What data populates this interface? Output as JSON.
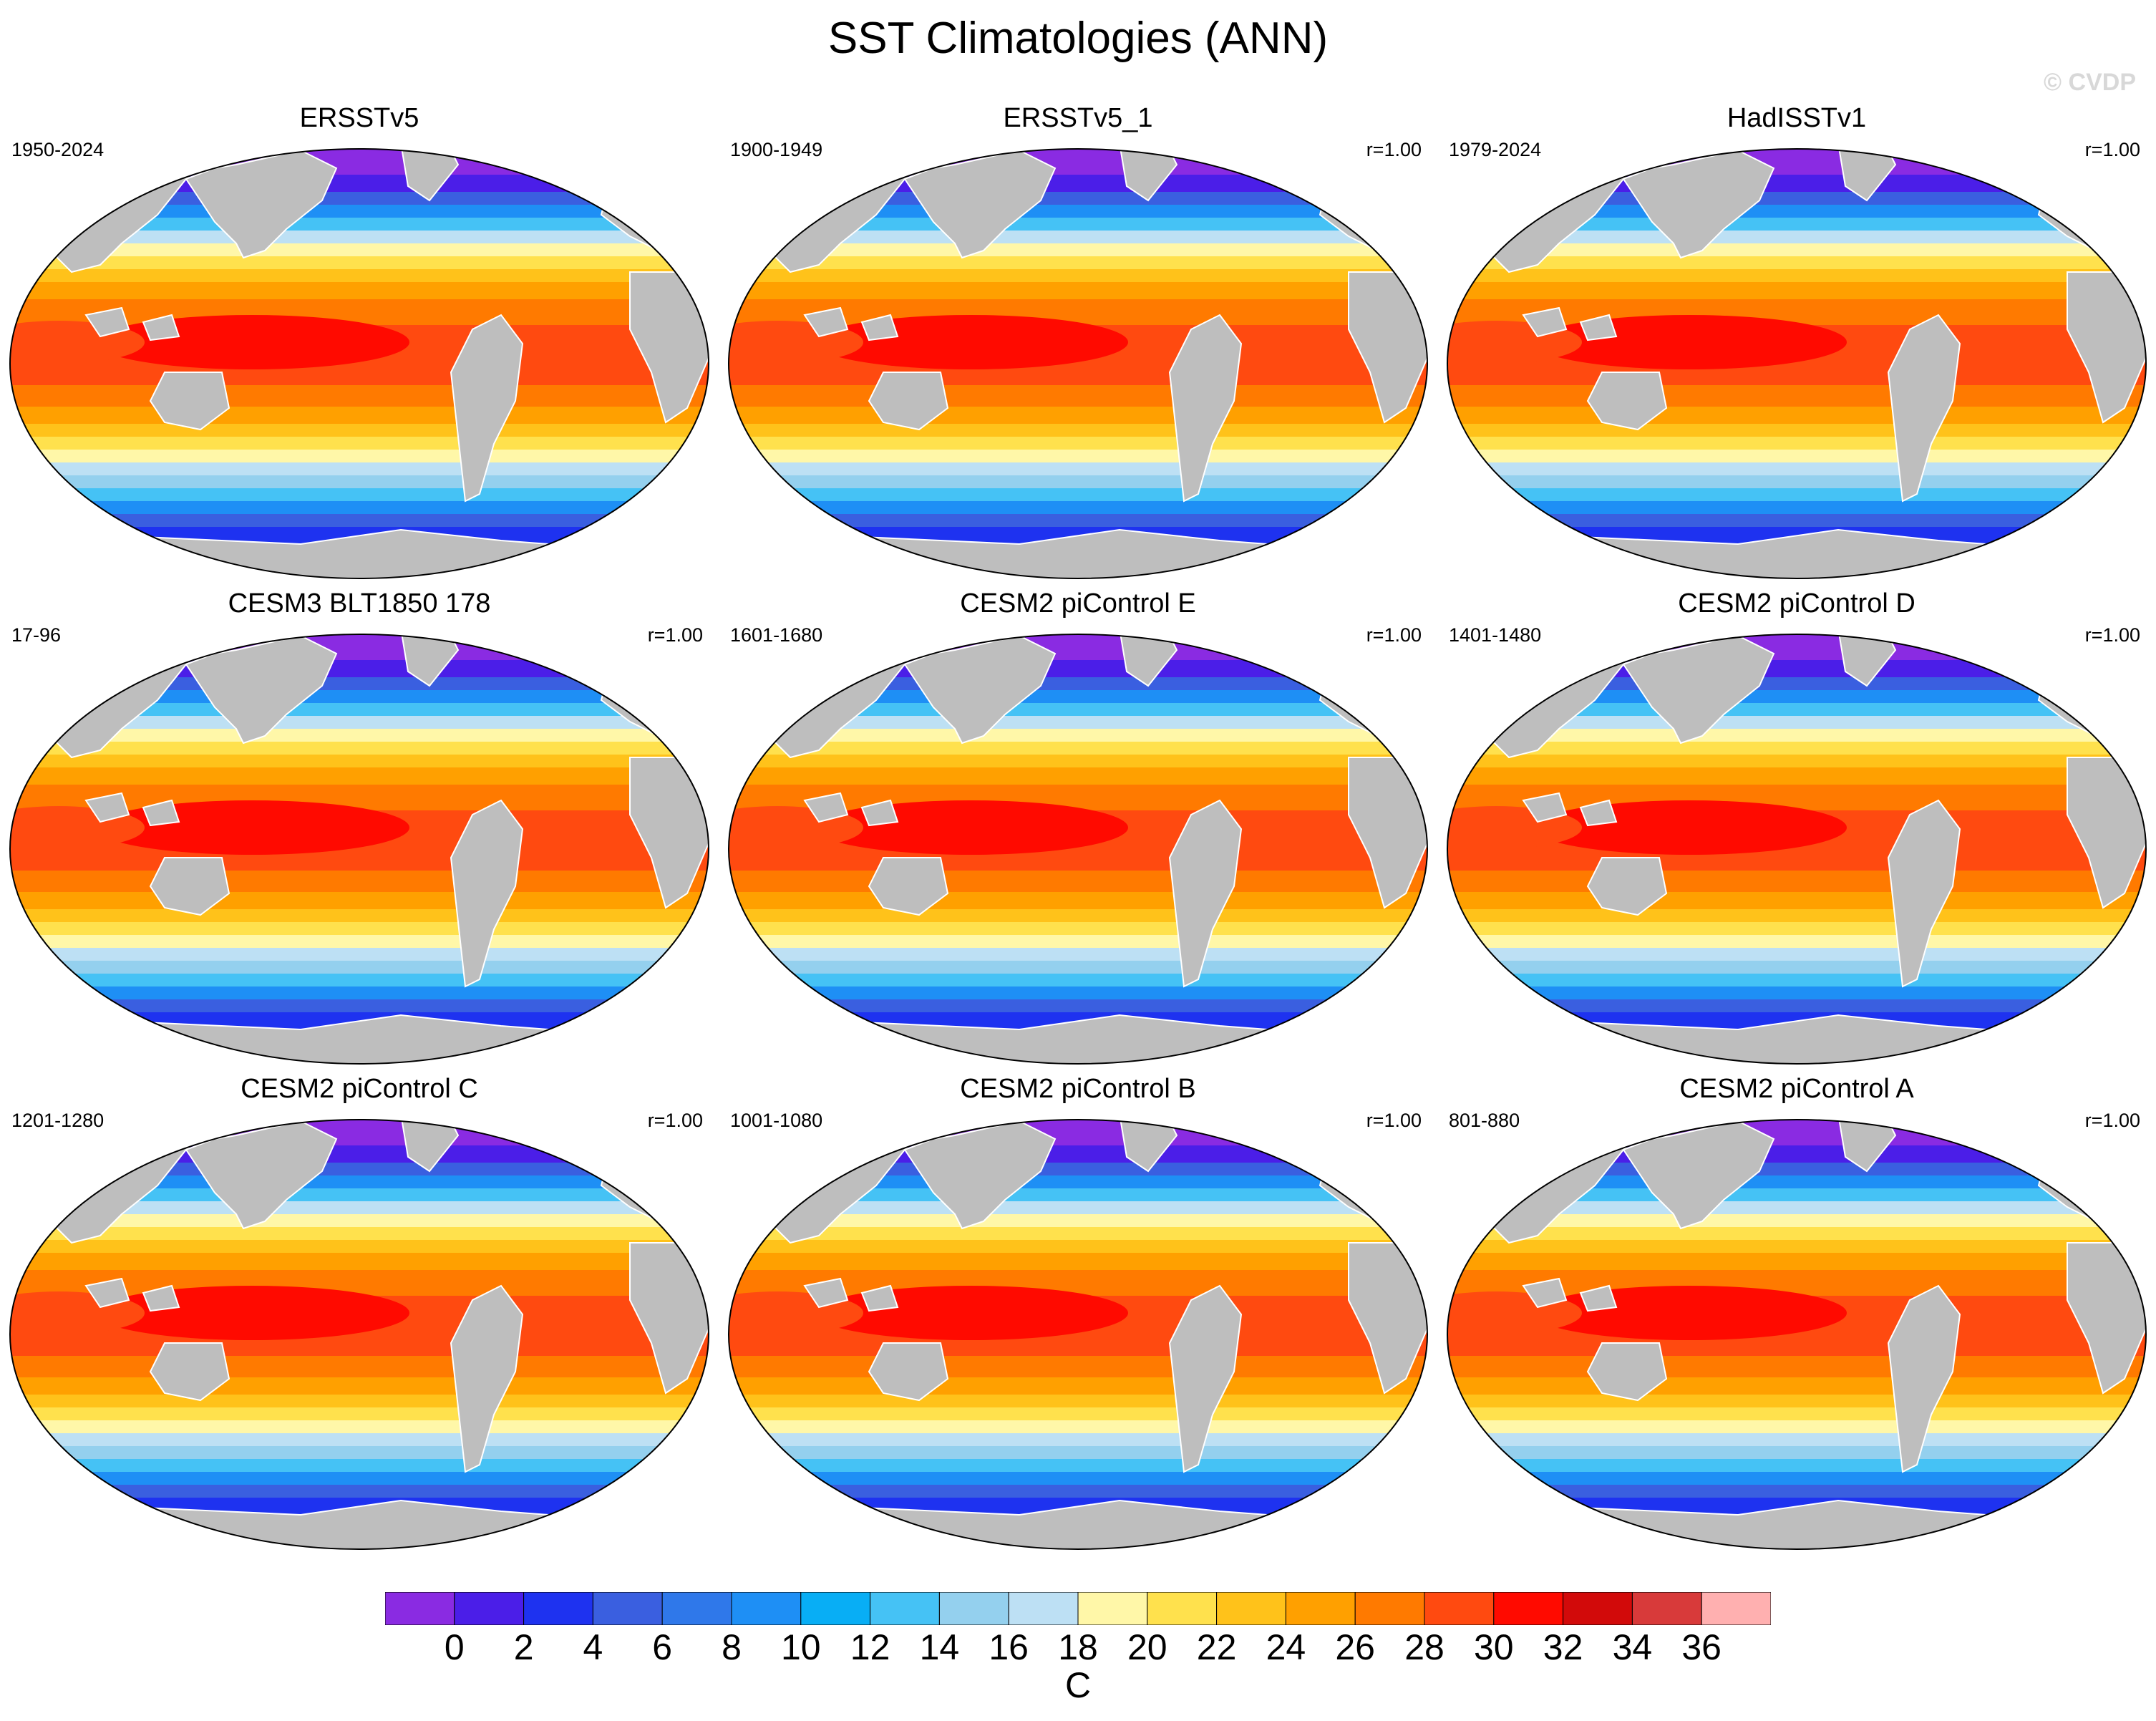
{
  "title": "SST Climatologies (ANN)",
  "watermark": "© CVDP",
  "panels": [
    {
      "name": "ERSSTv5",
      "years": "1950-2024",
      "corr": ""
    },
    {
      "name": "ERSSTv5_1",
      "years": "1900-1949",
      "corr": "r=1.00"
    },
    {
      "name": "HadISSTv1",
      "years": "1979-2024",
      "corr": "r=1.00"
    },
    {
      "name": "CESM3 BLT1850 178",
      "years": "17-96",
      "corr": "r=1.00"
    },
    {
      "name": "CESM2 piControl E",
      "years": "1601-1680",
      "corr": "r=1.00"
    },
    {
      "name": "CESM2 piControl D",
      "years": "1401-1480",
      "corr": "r=1.00"
    },
    {
      "name": "CESM2 piControl C",
      "years": "1201-1280",
      "corr": "r=1.00"
    },
    {
      "name": "CESM2 piControl B",
      "years": "1001-1080",
      "corr": "r=1.00"
    },
    {
      "name": "CESM2 piControl A",
      "years": "801-880",
      "corr": "r=1.00"
    }
  ],
  "colorbar": {
    "units": "C",
    "labels": [
      "0",
      "2",
      "4",
      "6",
      "8",
      "10",
      "12",
      "14",
      "16",
      "18",
      "20",
      "22",
      "24",
      "26",
      "28",
      "30",
      "32",
      "34",
      "36"
    ],
    "colors": [
      "#8a2be2",
      "#4b1ee8",
      "#1e32f0",
      "#3a5fe0",
      "#2f78ea",
      "#1e8ff5",
      "#08aef5",
      "#45c2f5",
      "#94d0ee",
      "#bde0f4",
      "#fff7a8",
      "#ffe14d",
      "#ffc21a",
      "#ffa000",
      "#ff7a00",
      "#ff4a10",
      "#ff0a00",
      "#d20a0a",
      "#d83a3a",
      "#ffb0b0"
    ],
    "land_color": "#bebebe"
  }
}
